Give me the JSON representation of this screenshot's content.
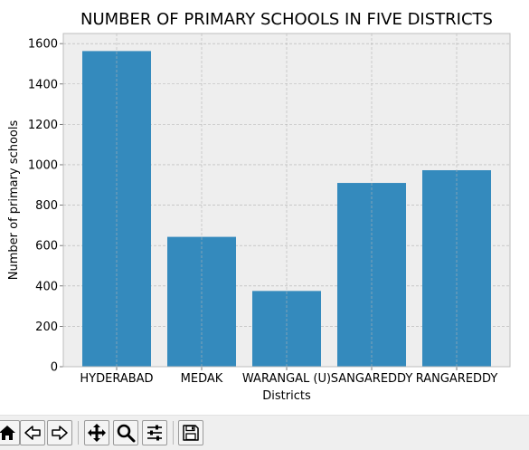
{
  "chart_data": {
    "type": "bar",
    "title": "NUMBER OF PRIMARY SCHOOLS IN FIVE DISTRICTS",
    "xlabel": "Districts",
    "ylabel": "Number of primary schools",
    "categories": [
      "HYDERABAD",
      "MEDAK",
      "WARANGAL (U)",
      "SANGAREDDY",
      "RANGAREDDY"
    ],
    "values": [
      1563,
      643,
      375,
      910,
      973
    ],
    "ylim": [
      0,
      1650
    ],
    "yticks": [
      0,
      200,
      400,
      600,
      800,
      1000,
      1200,
      1400,
      1600
    ],
    "grid": true,
    "style": "bmh",
    "bar_color": "#348ABD",
    "axes_facecolor": "#EEEEEE",
    "grid_color": "#B2B2B2"
  },
  "toolbar": {
    "buttons": [
      {
        "name": "home-button",
        "icon": "home-icon"
      },
      {
        "name": "back-button",
        "icon": "arrow-left-icon"
      },
      {
        "name": "forward-button",
        "icon": "arrow-right-icon"
      },
      {
        "name": "pan-button",
        "icon": "move-icon"
      },
      {
        "name": "zoom-button",
        "icon": "magnifier-icon"
      },
      {
        "name": "configure-button",
        "icon": "sliders-icon"
      },
      {
        "name": "save-button",
        "icon": "floppy-disk-icon"
      }
    ]
  }
}
